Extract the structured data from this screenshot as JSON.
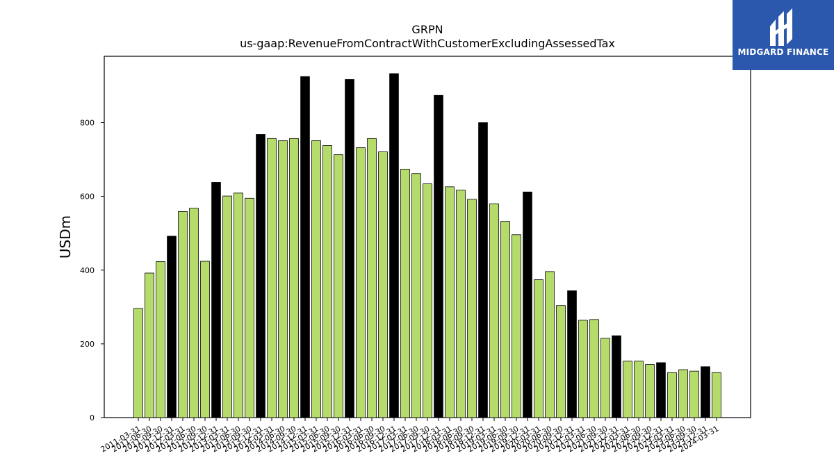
{
  "chart_data": {
    "type": "bar",
    "title": "GRPN",
    "subtitle": "us-gaap:RevenueFromContractWithCustomerExcludingAssessedTax",
    "ylabel": "USDm",
    "xlabel": "",
    "ylim": [
      0,
      980
    ],
    "yticks": [
      0,
      200,
      400,
      600,
      800
    ],
    "grid": false,
    "colors": {
      "quarter": "#b5dc6a",
      "annual": "#000000",
      "edge": "#000000"
    },
    "categories": [
      "2011-03-31",
      "2011-06-30",
      "2011-09-30",
      "2011-12-31",
      "2012-03-31",
      "2012-06-30",
      "2012-09-30",
      "2012-12-31",
      "2013-03-31",
      "2013-06-30",
      "2013-09-30",
      "2013-12-31",
      "2014-03-31",
      "2014-06-30",
      "2014-09-30",
      "2014-12-31",
      "2015-03-31",
      "2015-06-30",
      "2015-09-30",
      "2015-12-31",
      "2016-03-31",
      "2016-06-30",
      "2016-09-30",
      "2016-12-31",
      "2017-03-31",
      "2017-06-30",
      "2017-09-30",
      "2017-12-31",
      "2018-03-31",
      "2018-06-30",
      "2018-09-30",
      "2018-12-31",
      "2019-03-31",
      "2019-06-30",
      "2019-09-30",
      "2019-12-31",
      "2020-03-31",
      "2020-06-30",
      "2020-09-30",
      "2020-12-31",
      "2021-03-31",
      "2021-06-30",
      "2021-09-30",
      "2021-12-31",
      "2022-03-31",
      "2022-06-30",
      "2022-09-30",
      "2022-12-31",
      "2023-03-31",
      "2023-06-30",
      "2023-09-30",
      "2023-12-31",
      "2024-03-31"
    ],
    "values": [
      296,
      392,
      423,
      492,
      559,
      568,
      424,
      638,
      601,
      609,
      595,
      768,
      757,
      751,
      757,
      925,
      751,
      738,
      713,
      917,
      732,
      757,
      721,
      933,
      674,
      662,
      634,
      874,
      626,
      617,
      592,
      800,
      580,
      532,
      496,
      612,
      374,
      396,
      304,
      344,
      264,
      266,
      215,
      222,
      153,
      153,
      144,
      149,
      122,
      130,
      126,
      138,
      122
    ],
    "annual_flags": [
      0,
      0,
      0,
      1,
      0,
      0,
      0,
      1,
      0,
      0,
      0,
      1,
      0,
      0,
      0,
      1,
      0,
      0,
      0,
      1,
      0,
      0,
      0,
      1,
      0,
      0,
      0,
      1,
      0,
      0,
      0,
      1,
      0,
      0,
      0,
      1,
      0,
      0,
      0,
      1,
      0,
      0,
      0,
      1,
      0,
      0,
      0,
      1,
      0,
      0,
      0,
      1,
      0
    ]
  },
  "brand": {
    "name": "MIDGARD FINANCE",
    "color": "#2b58ad",
    "icon": "midgard-logo-icon"
  }
}
